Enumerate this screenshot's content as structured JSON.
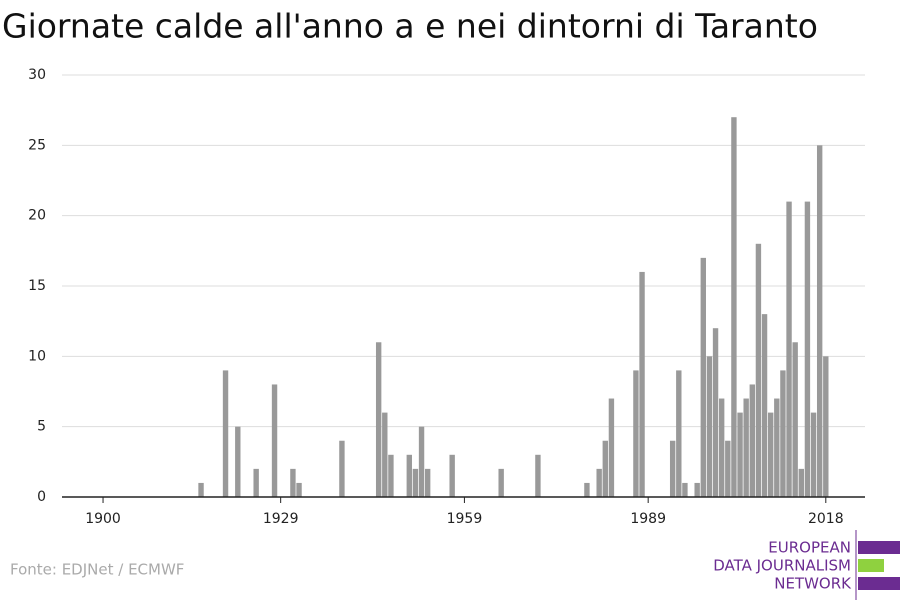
{
  "chart_data": {
    "type": "bar",
    "title": "Giornate calde all'anno a e nei dintorni di Taranto",
    "x": [
      1916,
      1920,
      1922,
      1925,
      1928,
      1931,
      1932,
      1939,
      1945,
      1946,
      1947,
      1950,
      1951,
      1952,
      1953,
      1957,
      1965,
      1971,
      1979,
      1981,
      1982,
      1983,
      1987,
      1988,
      1993,
      1994,
      1995,
      1997,
      1998,
      1999,
      2000,
      2001,
      2002,
      2003,
      2004,
      2005,
      2006,
      2007,
      2008,
      2009,
      2010,
      2011,
      2012,
      2013,
      2014,
      2015,
      2016,
      2017,
      2018
    ],
    "values": [
      1,
      9,
      5,
      2,
      8,
      2,
      1,
      4,
      11,
      6,
      3,
      3,
      2,
      5,
      2,
      3,
      2,
      3,
      1,
      2,
      4,
      7,
      9,
      16,
      4,
      9,
      1,
      1,
      17,
      10,
      12,
      7,
      4,
      27,
      6,
      7,
      8,
      18,
      13,
      6,
      7,
      9,
      21,
      11,
      2,
      21,
      6,
      25,
      10
    ],
    "color": "#999999",
    "xlim": [
      1893.3,
      2024.4
    ],
    "xticks": [
      1900,
      1929,
      1959,
      1989,
      2018
    ],
    "ylim": [
      0,
      30
    ],
    "yticks": [
      0,
      5,
      10,
      15,
      20,
      25,
      30
    ],
    "grid": true,
    "source": "Fonte: EDJNet / ECMWF",
    "logo": [
      "EUROPEAN",
      "DATA JOURNALISM",
      "NETWORK"
    ]
  }
}
